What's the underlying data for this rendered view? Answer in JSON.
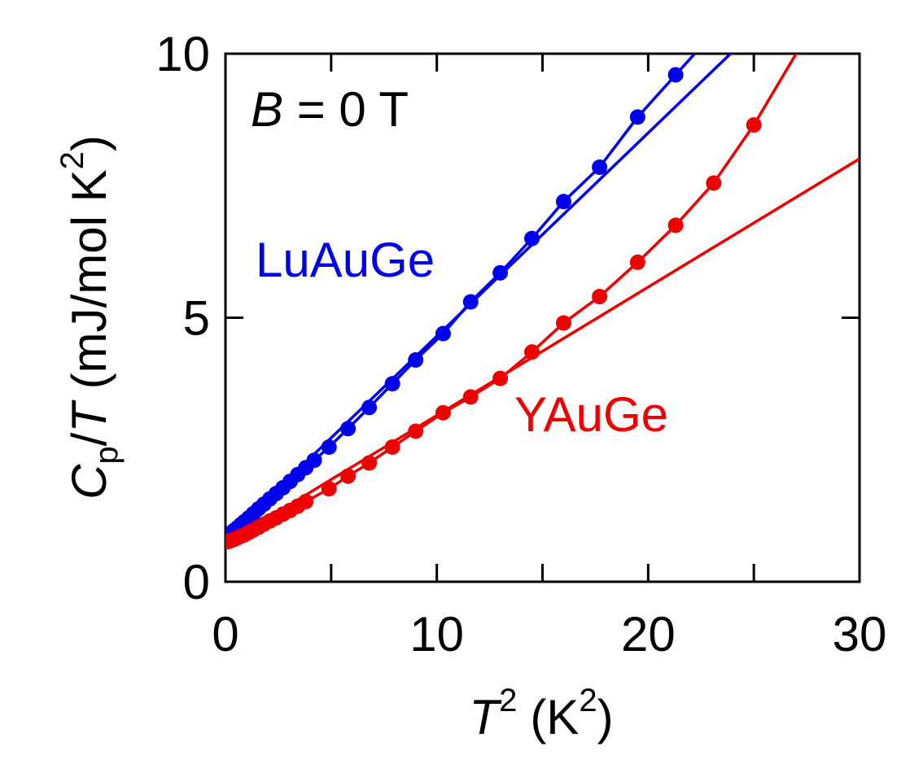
{
  "chart_data": {
    "type": "scatter",
    "xlabel": {
      "main": "T",
      "sup": "2",
      "unit_prefix": "(K",
      "unit_sup": "2",
      "unit_suffix": ")"
    },
    "ylabel": {
      "main": "C",
      "sub": "p",
      "slash": "/",
      "italic": "T",
      "unit_prefix": " (mJ/mol K",
      "unit_sup": "2",
      "unit_suffix": ")"
    },
    "xlim": [
      0,
      30
    ],
    "ylim": [
      0,
      10
    ],
    "x_ticks": [
      0,
      10,
      20,
      30
    ],
    "x_tick_labels": [
      "0",
      "10",
      "20",
      "30"
    ],
    "x_minor_ticks": [
      5,
      15,
      25
    ],
    "y_ticks": [
      0,
      5,
      10
    ],
    "y_tick_labels": [
      "0",
      "5",
      "10"
    ],
    "annotation": {
      "italic": "B",
      "rest": " = 0 T"
    },
    "series": [
      {
        "name": "LuAuGe",
        "color": "#0000ee",
        "points": [
          [
            0.12,
            0.88
          ],
          [
            0.25,
            0.92
          ],
          [
            0.4,
            0.97
          ],
          [
            0.56,
            1.02
          ],
          [
            0.72,
            1.08
          ],
          [
            0.9,
            1.14
          ],
          [
            1.1,
            1.21
          ],
          [
            1.32,
            1.29
          ],
          [
            1.56,
            1.38
          ],
          [
            1.82,
            1.47
          ],
          [
            2.1,
            1.57
          ],
          [
            2.4,
            1.67
          ],
          [
            2.72,
            1.78
          ],
          [
            3.06,
            1.9
          ],
          [
            3.42,
            2.03
          ],
          [
            3.8,
            2.16
          ],
          [
            4.2,
            2.3
          ],
          [
            4.9,
            2.55
          ],
          [
            5.8,
            2.9
          ],
          [
            6.8,
            3.3
          ],
          [
            7.9,
            3.75
          ],
          [
            9.0,
            4.2
          ],
          [
            10.3,
            4.7
          ],
          [
            11.6,
            5.3
          ],
          [
            13.0,
            5.85
          ],
          [
            14.5,
            6.5
          ],
          [
            16.0,
            7.2
          ],
          [
            17.7,
            7.85
          ],
          [
            19.5,
            8.8
          ],
          [
            21.3,
            9.6
          ]
        ],
        "fit": {
          "intercept": 0.8,
          "slope": 0.385
        }
      },
      {
        "name": "YAuGe",
        "color": "#ee0000",
        "points": [
          [
            0.12,
            0.76
          ],
          [
            0.25,
            0.78
          ],
          [
            0.4,
            0.8
          ],
          [
            0.56,
            0.83
          ],
          [
            0.72,
            0.86
          ],
          [
            0.9,
            0.89
          ],
          [
            1.1,
            0.93
          ],
          [
            1.32,
            0.98
          ],
          [
            1.56,
            1.03
          ],
          [
            1.82,
            1.09
          ],
          [
            2.1,
            1.15
          ],
          [
            2.4,
            1.21
          ],
          [
            2.72,
            1.28
          ],
          [
            3.06,
            1.35
          ],
          [
            3.42,
            1.43
          ],
          [
            3.8,
            1.52
          ],
          [
            4.9,
            1.76
          ],
          [
            5.8,
            2.0
          ],
          [
            6.8,
            2.25
          ],
          [
            7.9,
            2.55
          ],
          [
            9.0,
            2.85
          ],
          [
            10.3,
            3.2
          ],
          [
            11.6,
            3.5
          ],
          [
            13.0,
            3.85
          ],
          [
            14.5,
            4.35
          ],
          [
            16.0,
            4.9
          ],
          [
            17.7,
            5.4
          ],
          [
            19.5,
            6.05
          ],
          [
            21.3,
            6.75
          ],
          [
            23.1,
            7.55
          ],
          [
            25.0,
            8.65
          ]
        ],
        "curve_extension": [
          [
            27.0,
            10.0
          ]
        ],
        "fit": {
          "intercept": 0.72,
          "slope": 0.243
        }
      }
    ]
  }
}
